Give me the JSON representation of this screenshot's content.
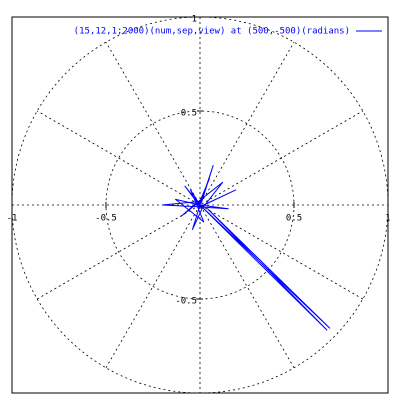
{
  "chart_data": {
    "type": "line",
    "polar": true,
    "grid": true,
    "xlim": [
      -1,
      1
    ],
    "ylim": [
      -1,
      1
    ],
    "xticks": [
      -1,
      -0.5,
      0.5,
      1
    ],
    "yticks": [
      -0.5,
      0.5,
      1
    ],
    "legend_position": "top-right",
    "series": [
      {
        "name": "(15,12,1;2000)(num,sep,view) at (500,-500)(radians)",
        "color": "#0000ff",
        "x": [
          0,
          0.07,
          0.01,
          -0.2,
          0,
          0.19,
          0.02,
          -0.04,
          0,
          0.675,
          0.04,
          0.69,
          0,
          -0.08,
          0.01,
          0.12,
          -0.02,
          -0.1,
          0,
          0.05,
          -0.01,
          0.15,
          0,
          -0.05,
          0.02,
          -0.13,
          0
        ],
        "values": [
          0,
          0.21,
          0.02,
          0,
          -0.01,
          0.08,
          0,
          -0.13,
          0,
          -0.665,
          -0.02,
          -0.655,
          0,
          0.1,
          -0.02,
          0.12,
          0.01,
          -0.06,
          0.02,
          0.14,
          -0.01,
          -0.02,
          0,
          0.08,
          -0.09,
          0.03,
          0
        ]
      }
    ]
  }
}
